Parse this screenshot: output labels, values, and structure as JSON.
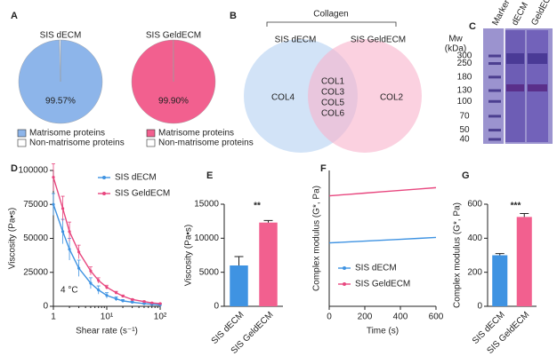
{
  "chart_data": [
    {
      "type": "pie",
      "panel": "A",
      "title": "SIS dECM",
      "categories": [
        "Matrisome proteins",
        "Non-matrisome proteins"
      ],
      "values": [
        99.57,
        0.43
      ],
      "value_labels": [
        "99.57%",
        null
      ],
      "colors": [
        "#8db5ea",
        "#ffffff"
      ]
    },
    {
      "type": "pie",
      "title": "SIS GeldECM",
      "categories": [
        "Matrisome proteins",
        "Non-matrisome proteins"
      ],
      "values": [
        99.9,
        0.1
      ],
      "value_labels": [
        "99.90%",
        null
      ],
      "colors": [
        "#f2608f",
        "#ffffff"
      ]
    },
    {
      "type": "venn",
      "panel": "B",
      "title": "Collagen",
      "sets": [
        {
          "name": "SIS dECM",
          "color": "#b4d0f2"
        },
        {
          "name": "SIS GeldECM",
          "color": "#f8b3cb"
        }
      ],
      "regions": {
        "only_0": [
          "COL4"
        ],
        "both": [
          "COL1",
          "COL3",
          "COL5",
          "COL6"
        ],
        "only_1": [
          "COL2"
        ]
      }
    },
    {
      "type": "gel",
      "panel": "C",
      "axis_label": [
        "Mw",
        "(kDa)"
      ],
      "ladder": [
        300,
        250,
        180,
        130,
        100,
        70,
        50,
        40
      ],
      "lanes": [
        "Marker",
        "dECM",
        "GeldECM"
      ]
    },
    {
      "type": "line",
      "panel": "D",
      "xlabel": "Shear rate (s⁻¹)",
      "ylabel": "Viscosity (Pa•s)",
      "annotation": "4 °C",
      "xlog": true,
      "x": [
        1,
        1.5,
        2,
        3,
        5,
        7,
        10,
        15,
        20,
        30,
        50,
        70,
        100
      ],
      "xlim": [
        1,
        100
      ],
      "xticks": [
        1,
        {
          "value": 10,
          "label": "10¹"
        },
        {
          "value": 100,
          "label": "10²"
        }
      ],
      "ylim": [
        0,
        100000
      ],
      "yticks": [
        0,
        25000,
        50000,
        75000,
        100000
      ],
      "legend": "upper right",
      "series": [
        {
          "name": "SIS dECM",
          "color": "#3f93e2",
          "values": [
            75000,
            55000,
            42000,
            28000,
            17000,
            12000,
            8000,
            5500,
            4000,
            3000,
            2000,
            1500,
            1000
          ],
          "errors": [
            8000,
            9000,
            8000,
            6000,
            4000,
            3000,
            2000,
            1500,
            1000,
            800,
            500,
            400,
            300
          ]
        },
        {
          "name": "SIS GeldECM",
          "color": "#e8477f",
          "values": [
            95000,
            72000,
            55000,
            40000,
            26000,
            19000,
            14000,
            10000,
            7500,
            5000,
            3500,
            2500,
            2000
          ],
          "errors": [
            10000,
            9000,
            7000,
            5000,
            3000,
            2000,
            1500,
            1000,
            800,
            600,
            400,
            300,
            200
          ]
        }
      ]
    },
    {
      "type": "bar",
      "panel": "E",
      "ylabel": "Viscosity (Pa•s)",
      "annotation": "**",
      "categories": [
        "SIS dECM",
        "SIS GeldECM"
      ],
      "values": [
        6000,
        12300
      ],
      "errors": [
        1300,
        300
      ],
      "colors": [
        "#3f93e2",
        "#f2608f"
      ],
      "ylim": [
        0,
        15000
      ],
      "yticks": [
        0,
        5000,
        10000,
        15000
      ]
    },
    {
      "type": "line",
      "panel": "F",
      "xlabel": "Time (s)",
      "ylabel": "Complex modulus (G*, Pa)",
      "x": [
        0,
        100,
        200,
        300,
        400,
        500,
        600
      ],
      "xlim": [
        0,
        600
      ],
      "xticks": [
        0,
        200,
        400,
        600
      ],
      "ylim": [
        0,
        600
      ],
      "legend": "lower left",
      "series": [
        {
          "name": "SIS dECM",
          "color": "#3f93e2",
          "values": [
            280,
            284,
            288,
            292,
            296,
            300,
            304
          ]
        },
        {
          "name": "SIS GeldECM",
          "color": "#e8477f",
          "values": [
            488,
            494,
            500,
            506,
            512,
            518,
            524
          ]
        }
      ]
    },
    {
      "type": "bar",
      "panel": "G",
      "ylabel": "Complex modulus (G*, Pa)",
      "annotation": "***",
      "categories": [
        "SIS dECM",
        "SIS GeldECM"
      ],
      "values": [
        300,
        525
      ],
      "errors": [
        10,
        20
      ],
      "colors": [
        "#3f93e2",
        "#f2608f"
      ],
      "ylim": [
        0,
        600
      ],
      "yticks": [
        0,
        200,
        400,
        600
      ]
    }
  ]
}
